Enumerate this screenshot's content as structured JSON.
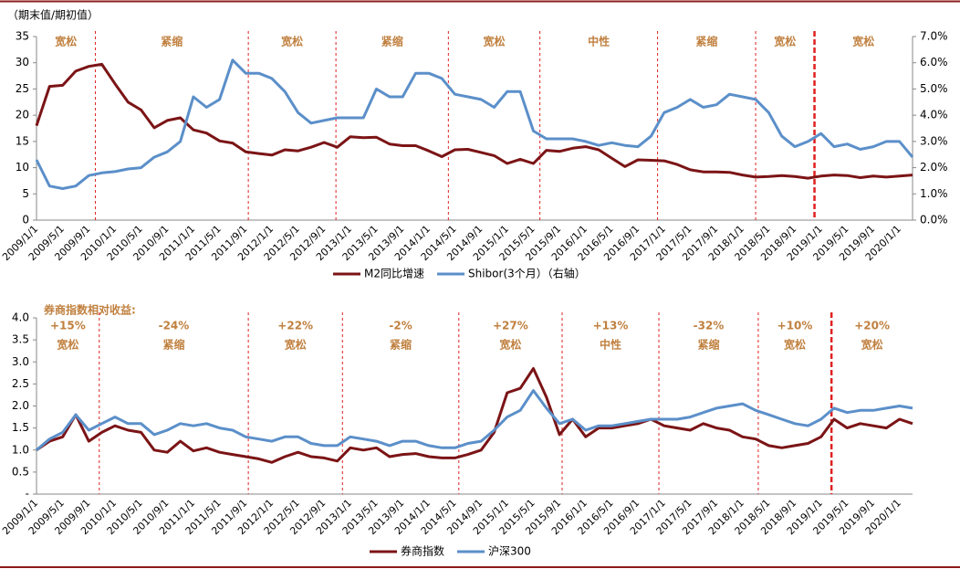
{
  "chart_data": [
    {
      "type": "line",
      "y_axis_label": "（期末值/期初值）",
      "categories": [
        "2009/1/1",
        null,
        "2009/5/1",
        null,
        "2009/9/1",
        null,
        "2010/1/1",
        null,
        "2010/5/1",
        null,
        "2010/9/1",
        null,
        "2011/1/1",
        null,
        "2011/5/1",
        null,
        "2011/9/1",
        null,
        "2012/1/1",
        null,
        "2012/5/1",
        null,
        "2012/9/1",
        null,
        "2013/1/1",
        null,
        "2013/5/1",
        null,
        "2013/9/1",
        null,
        "2014/1/1",
        null,
        "2014/5/1",
        null,
        "2014/9/1",
        null,
        "2015/1/1",
        null,
        "2015/5/1",
        null,
        "2015/9/1",
        null,
        "2016/1/1",
        null,
        "2016/5/1",
        null,
        "2016/9/1",
        null,
        "2017/1/1",
        null,
        "2017/5/1",
        null,
        "2017/9/1",
        null,
        "2018/1/1",
        null,
        "2018/5/1",
        null,
        "2018/9/1",
        null,
        "2019/1/1",
        null,
        "2019/5/1",
        null,
        "2019/9/1",
        null,
        "2020/1/1",
        null
      ],
      "series": [
        {
          "name": "M2同比增速",
          "color": "#7b1416",
          "values": [
            18,
            25.5,
            25.7,
            28.4,
            29.3,
            29.7,
            26,
            22.5,
            21,
            17.6,
            19,
            19.5,
            17.2,
            16.6,
            15.1,
            14.7,
            13,
            12.7,
            12.4,
            13.4,
            13.2,
            13.9,
            14.8,
            13.9,
            15.9,
            15.7,
            15.8,
            14.5,
            14.2,
            14.2,
            13.2,
            12.1,
            13.4,
            13.5,
            12.9,
            12.3,
            10.8,
            11.6,
            10.8,
            13.3,
            13.1,
            13.7,
            14,
            13.4,
            11.8,
            10.2,
            11.5,
            11.4,
            11.3,
            10.6,
            9.6,
            9.2,
            9.2,
            9.1,
            8.6,
            8.2,
            8.3,
            8.5,
            8.3,
            8,
            8.4,
            8.6,
            8.5,
            8.1,
            8.4,
            8.2,
            8.4,
            8.6
          ]
        },
        {
          "name": "Shibor(3个月）（右轴）",
          "color": "#5b8fc9",
          "axis": "y2",
          "values": [
            2.3,
            1.3,
            1.2,
            1.3,
            1.7,
            1.8,
            1.85,
            1.95,
            2,
            2.4,
            2.6,
            3,
            4.7,
            4.3,
            4.6,
            6.1,
            5.6,
            5.6,
            5.4,
            4.9,
            4.1,
            3.7,
            3.8,
            3.9,
            3.9,
            3.9,
            5,
            4.7,
            4.7,
            5.6,
            5.6,
            5.4,
            4.8,
            4.7,
            4.6,
            4.3,
            4.9,
            4.9,
            3.4,
            3.1,
            3.1,
            3.1,
            3,
            2.85,
            2.95,
            2.85,
            2.8,
            3.2,
            4.1,
            4.3,
            4.6,
            4.3,
            4.4,
            4.8,
            4.7,
            4.6,
            4.1,
            3.2,
            2.8,
            3,
            3.3,
            2.8,
            2.9,
            2.7,
            2.8,
            3,
            3,
            2.4
          ]
        }
      ],
      "ylim": [
        0,
        35
      ],
      "yticks": [
        0,
        5,
        10,
        15,
        20,
        25,
        30,
        35
      ],
      "y2lim": [
        0,
        7
      ],
      "y2ticks": [
        {
          "value": 0,
          "label": "0.0%"
        },
        {
          "value": 1,
          "label": "1.0%"
        },
        {
          "value": 2,
          "label": "2.0%"
        },
        {
          "value": 3,
          "label": "3.0%"
        },
        {
          "value": 4,
          "label": "4.0%"
        },
        {
          "value": 5,
          "label": "5.0%"
        },
        {
          "value": 6,
          "label": "6.0%"
        },
        {
          "value": 7,
          "label": "7.0%"
        }
      ],
      "period_labels": [
        "宽松",
        "紧缩",
        "宽松",
        "紧缩",
        "宽松",
        "中性",
        "紧缩",
        "宽松",
        "宽松"
      ],
      "dividers": [
        4.5,
        16.2,
        22.9,
        31.5,
        38.5,
        47.5,
        55,
        59.5
      ],
      "bold_divider": 7
    },
    {
      "type": "line",
      "title": "券商指数相对收益:",
      "categories": [
        "2009/1/1",
        null,
        "2009/5/1",
        null,
        "2009/9/1",
        null,
        "2010/1/1",
        null,
        "2010/5/1",
        null,
        "2010/9/1",
        null,
        "2011/1/1",
        null,
        "2011/5/1",
        null,
        "2011/9/1",
        null,
        "2012/1/1",
        null,
        "2012/5/1",
        null,
        "2012/9/1",
        null,
        "2013/1/1",
        null,
        "2013/5/1",
        null,
        "2013/9/1",
        null,
        "2014/1/1",
        null,
        "2014/5/1",
        null,
        "2014/9/1",
        null,
        "2015/1/1",
        null,
        "2015/5/1",
        null,
        "2015/9/1",
        null,
        "2016/1/1",
        null,
        "2016/5/1",
        null,
        "2016/9/1",
        null,
        "2017/1/1",
        null,
        "2017/5/1",
        null,
        "2017/9/1",
        null,
        "2018/1/1",
        null,
        "2018/5/1",
        null,
        "2018/9/1",
        null,
        "2019/1/1",
        null,
        "2019/5/1",
        null,
        "2019/9/1",
        null,
        "2020/1/1",
        null
      ],
      "series": [
        {
          "name": "券商指数",
          "color": "#7b1416",
          "values": [
            1,
            1.2,
            1.3,
            1.8,
            1.2,
            1.4,
            1.55,
            1.45,
            1.4,
            1,
            0.95,
            1.2,
            0.98,
            1.05,
            0.95,
            0.9,
            0.85,
            0.8,
            0.72,
            0.85,
            0.95,
            0.85,
            0.82,
            0.75,
            1.05,
            1,
            1.05,
            0.85,
            0.9,
            0.92,
            0.85,
            0.82,
            0.82,
            0.9,
            1,
            1.4,
            2.3,
            2.4,
            2.85,
            2.2,
            1.35,
            1.7,
            1.3,
            1.5,
            1.5,
            1.55,
            1.6,
            1.7,
            1.55,
            1.5,
            1.45,
            1.6,
            1.5,
            1.45,
            1.3,
            1.25,
            1.1,
            1.05,
            1.1,
            1.15,
            1.3,
            1.7,
            1.5,
            1.6,
            1.55,
            1.5,
            1.7,
            1.6
          ]
        },
        {
          "name": "沪深300",
          "color": "#5b8fc9",
          "values": [
            1,
            1.25,
            1.4,
            1.8,
            1.45,
            1.6,
            1.75,
            1.6,
            1.6,
            1.35,
            1.45,
            1.6,
            1.55,
            1.6,
            1.5,
            1.45,
            1.3,
            1.25,
            1.2,
            1.3,
            1.3,
            1.15,
            1.1,
            1.1,
            1.3,
            1.25,
            1.2,
            1.1,
            1.2,
            1.2,
            1.1,
            1.05,
            1.05,
            1.15,
            1.2,
            1.45,
            1.75,
            1.9,
            2.35,
            1.95,
            1.6,
            1.7,
            1.45,
            1.55,
            1.55,
            1.6,
            1.65,
            1.7,
            1.7,
            1.7,
            1.75,
            1.85,
            1.95,
            2,
            2.05,
            1.9,
            1.8,
            1.7,
            1.6,
            1.55,
            1.7,
            1.95,
            1.85,
            1.9,
            1.9,
            1.95,
            2,
            1.95
          ]
        }
      ],
      "ylim": [
        0,
        4
      ],
      "yticks": [
        {
          "value": 0,
          "label": "-"
        },
        0.5,
        {
          "value": 1,
          "label": "1.0"
        },
        1.5,
        {
          "value": 2,
          "label": "2.0"
        },
        2.5,
        {
          "value": 3,
          "label": "3.0"
        },
        3.5,
        {
          "value": 4,
          "label": "4.0"
        }
      ],
      "period_returns": [
        "+15%",
        "-24%",
        "+22%",
        "-2%",
        "+27%",
        "+13%",
        "-32%",
        "+10%",
        "+20%"
      ],
      "period_labels": [
        "宽松",
        "紧缩",
        "宽松",
        "紧缩",
        "宽松",
        "中性",
        "紧缩",
        "宽松",
        "宽松"
      ],
      "dividers": [
        4.8,
        16.2,
        23.4,
        32.3,
        40.2,
        47.6,
        55.2,
        60.8
      ],
      "bold_divider": 7
    }
  ]
}
